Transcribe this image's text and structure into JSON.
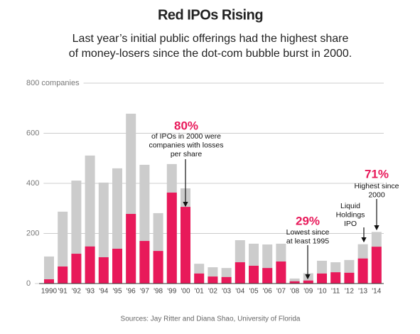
{
  "chart_data": {
    "type": "bar",
    "title": "Red IPOs Rising",
    "subtitle": [
      "Last year’s initial public offerings had the highest share",
      "of money-losers since the dot-com bubble burst in 2000."
    ],
    "categories": [
      "1990",
      "'91",
      "'92",
      "'93",
      "'94",
      "'95",
      "'96",
      "'97",
      "'98",
      "'99",
      "'00",
      "'01",
      "'02",
      "'03",
      "'04",
      "'05",
      "'06",
      "'07",
      "'08",
      "'09",
      "'10",
      "'11",
      "'12",
      "'13",
      "'14"
    ],
    "series": [
      {
        "color": "#cccccc",
        "values": [
          108,
          287,
          411,
          511,
          403,
          460,
          678,
          474,
          281,
          477,
          380,
          79,
          65,
          62,
          173,
          159,
          156,
          159,
          20,
          41,
          91,
          85,
          94,
          157,
          206
        ]
      },
      {
        "color": "#e8195a",
        "values": [
          17,
          68,
          119,
          148,
          105,
          139,
          278,
          170,
          130,
          363,
          306,
          40,
          28,
          26,
          85,
          71,
          62,
          88,
          9,
          12,
          40,
          45,
          43,
          100,
          147
        ]
      }
    ],
    "ylim": [
      0,
      800
    ],
    "yticks": [
      0,
      200,
      400,
      600,
      {
        "value": 800,
        "label": "800 companies"
      }
    ],
    "grid": true,
    "annotations": [
      {
        "pct": "80%",
        "text": [
          "of IPOs in 2000 were",
          "companies with losses",
          "per share"
        ]
      },
      {
        "pct": "29%",
        "text": [
          "Lowest since",
          "at least 1995"
        ]
      },
      {
        "pct": "71%",
        "text": [
          "Highest since",
          "2000"
        ]
      },
      {
        "text": [
          "Liquid",
          "Holdings",
          "IPO"
        ]
      }
    ],
    "source": "Sources: Jay Ritter and Diana Shao, University of Florida"
  }
}
